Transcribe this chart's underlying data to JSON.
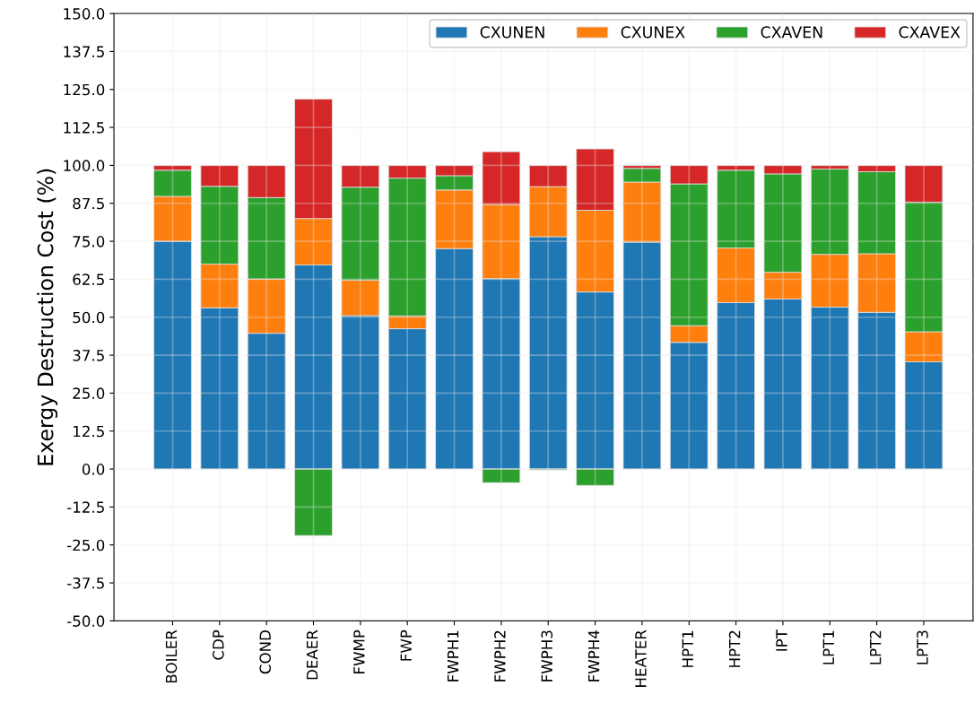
{
  "chart_data": {
    "type": "bar",
    "stacked": true,
    "ylabel": "Exergy Destruction Cost (%)",
    "categories": [
      "BOILER",
      "CDP",
      "COND",
      "DEAER",
      "FWMP",
      "FWP",
      "FWPH1",
      "FWPH2",
      "FWPH3",
      "FWPH4",
      "HEATER",
      "HPT1",
      "HPT2",
      "IPT",
      "LPT1",
      "LPT2",
      "LPT3"
    ],
    "series": [
      {
        "name": "CXUNEN",
        "color": "#1f77b4",
        "values": [
          75.0,
          53.1,
          44.7,
          67.2,
          50.5,
          46.2,
          72.6,
          62.7,
          76.5,
          58.3,
          74.7,
          41.7,
          54.8,
          56.0,
          53.3,
          51.6,
          35.3
        ]
      },
      {
        "name": "CXUNEX",
        "color": "#ff7f0e",
        "values": [
          14.8,
          14.4,
          17.9,
          15.3,
          11.7,
          4.2,
          19.3,
          24.4,
          16.5,
          26.9,
          19.8,
          5.5,
          18.0,
          8.8,
          17.4,
          19.3,
          9.9
        ]
      },
      {
        "name": "CXAVEN",
        "color": "#2ca02c",
        "values": [
          8.6,
          25.6,
          26.8,
          -21.9,
          30.6,
          45.4,
          4.7,
          -4.5,
          -0.3,
          -5.4,
          4.5,
          46.7,
          25.6,
          32.4,
          28.1,
          27.0,
          42.7
        ]
      },
      {
        "name": "CXAVEX",
        "color": "#d62728",
        "values": [
          1.6,
          6.9,
          10.6,
          39.3,
          7.2,
          4.2,
          3.4,
          17.4,
          7.0,
          20.2,
          1.0,
          6.1,
          1.6,
          2.8,
          1.2,
          2.1,
          12.1
        ]
      }
    ],
    "ylim": [
      -50,
      150
    ],
    "yticks": [
      {
        "value": -50,
        "label": "-50.0"
      },
      {
        "value": -37.5,
        "label": "-37.5"
      },
      {
        "value": -25,
        "label": "-25.0"
      },
      {
        "value": -12.5,
        "label": "-12.5"
      },
      {
        "value": 0,
        "label": "0.0"
      },
      {
        "value": 12.5,
        "label": "12.5"
      },
      {
        "value": 25,
        "label": "25.0"
      },
      {
        "value": 37.5,
        "label": "37.5"
      },
      {
        "value": 50,
        "label": "50.0"
      },
      {
        "value": 62.5,
        "label": "62.5"
      },
      {
        "value": 75,
        "label": "75.0"
      },
      {
        "value": 87.5,
        "label": "87.5"
      },
      {
        "value": 100,
        "label": "100.0"
      },
      {
        "value": 112.5,
        "label": "112.5"
      },
      {
        "value": 125,
        "label": "125.0"
      },
      {
        "value": 137.5,
        "label": "137.5"
      },
      {
        "value": 150,
        "label": "150.0"
      }
    ],
    "grid": true,
    "legend": "top right"
  }
}
